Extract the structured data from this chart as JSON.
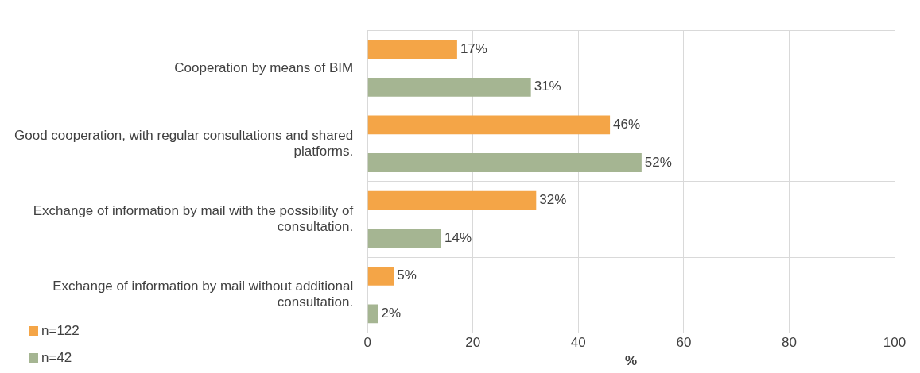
{
  "chart_data": {
    "type": "bar",
    "orientation": "horizontal",
    "xlabel": "%",
    "categories": [
      "Cooperation by means of BIM",
      "Good cooperation, with regular consultations and shared platforms.",
      "Exchange of information by mail with the possibility of consultation.",
      "Exchange of information by mail without additional consultation."
    ],
    "series": [
      {
        "name": "n=122",
        "color": "#f4a547",
        "values": [
          17,
          46,
          32,
          5
        ],
        "value_labels": [
          "17%",
          "46%",
          "32%",
          "5%"
        ]
      },
      {
        "name": "n=42",
        "color": "#a5b592",
        "values": [
          31,
          52,
          14,
          2
        ],
        "value_labels": [
          "31%",
          "52%",
          "14%",
          "2%"
        ]
      }
    ],
    "xlim": [
      0,
      100
    ],
    "xticks": [
      0,
      20,
      40,
      60,
      80,
      100
    ],
    "grid": true,
    "legend": "bottom left"
  }
}
